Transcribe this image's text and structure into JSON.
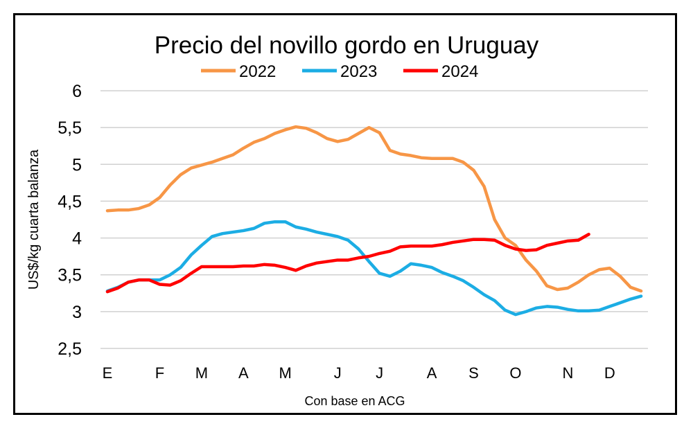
{
  "chart_data": {
    "type": "line",
    "title": "Precio del novillo gordo en Uruguay",
    "xlabel": "Con base en ACG",
    "ylabel": "US$/kg cuarta balanza",
    "ylim": [
      2.5,
      6
    ],
    "yticks": [
      "2,5",
      "3",
      "3,5",
      "4",
      "4,5",
      "5",
      "5,5",
      "6"
    ],
    "ytick_values": [
      2.5,
      3,
      3.5,
      4,
      4.5,
      5,
      5.5,
      6
    ],
    "xticks": [
      "E",
      "F",
      "M",
      "A",
      "M",
      "J",
      "J",
      "A",
      "S",
      "O",
      "N",
      "D"
    ],
    "grid": true,
    "legend": "top",
    "series": [
      {
        "name": "2022",
        "color": "#F79646",
        "values": [
          4.37,
          4.38,
          4.38,
          4.4,
          4.45,
          4.55,
          4.72,
          4.86,
          4.95,
          4.99,
          5.03,
          5.08,
          5.13,
          5.22,
          5.3,
          5.35,
          5.42,
          5.47,
          5.51,
          5.49,
          5.43,
          5.35,
          5.31,
          5.34,
          5.42,
          5.5,
          5.43,
          5.19,
          5.14,
          5.12,
          5.09,
          5.08,
          5.08,
          5.08,
          5.03,
          4.92,
          4.7,
          4.25,
          4.0,
          3.9,
          3.7,
          3.55,
          3.35,
          3.3,
          3.32,
          3.4,
          3.5,
          3.57,
          3.59,
          3.48,
          3.33,
          3.28
        ]
      },
      {
        "name": "2023",
        "color": "#1CADE4",
        "values": [
          3.28,
          3.33,
          3.4,
          3.43,
          3.43,
          3.43,
          3.5,
          3.6,
          3.77,
          3.9,
          4.02,
          4.06,
          4.08,
          4.1,
          4.13,
          4.2,
          4.22,
          4.22,
          4.15,
          4.12,
          4.08,
          4.05,
          4.02,
          3.97,
          3.85,
          3.68,
          3.52,
          3.48,
          3.55,
          3.65,
          3.63,
          3.6,
          3.53,
          3.48,
          3.42,
          3.33,
          3.23,
          3.15,
          3.02,
          2.96,
          3.0,
          3.05,
          3.07,
          3.06,
          3.03,
          3.01,
          3.01,
          3.02,
          3.07,
          3.12,
          3.17,
          3.21
        ]
      },
      {
        "name": "2024",
        "color": "#FF0000",
        "values": [
          3.27,
          3.32,
          3.4,
          3.43,
          3.43,
          3.37,
          3.36,
          3.42,
          3.52,
          3.61,
          3.61,
          3.61,
          3.61,
          3.62,
          3.62,
          3.64,
          3.63,
          3.6,
          3.56,
          3.62,
          3.66,
          3.68,
          3.7,
          3.7,
          3.73,
          3.75,
          3.79,
          3.82,
          3.88,
          3.89,
          3.89,
          3.89,
          3.91,
          3.94,
          3.96,
          3.98,
          3.98,
          3.97,
          3.9,
          3.85,
          3.83,
          3.84,
          3.9,
          3.93,
          3.96,
          3.97,
          4.05
        ]
      }
    ]
  }
}
